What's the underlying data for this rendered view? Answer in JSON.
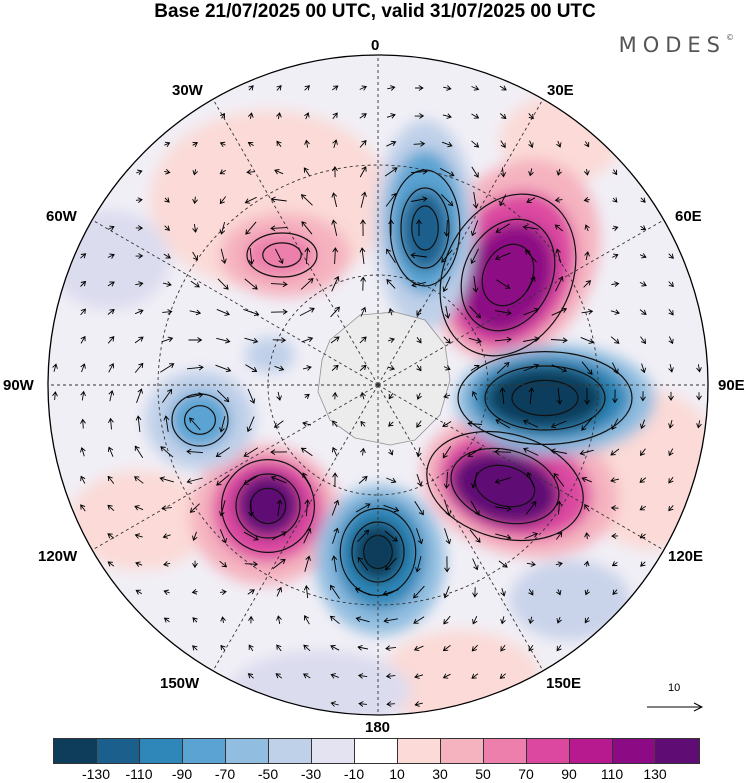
{
  "title": "Base 21/07/2025 00 UTC, valid 31/07/2025 00 UTC",
  "brand": "MODES",
  "brand_mark": "©",
  "lon_labels": {
    "l0": "0",
    "l30E": "30E",
    "l60E": "60E",
    "l90E": "90E",
    "l120E": "120E",
    "l150E": "150E",
    "l180": "180",
    "l150W": "150W",
    "l120W": "120W",
    "l90W": "90W",
    "l60W": "60W",
    "l30W": "30W"
  },
  "reference_vector": {
    "value": "10"
  },
  "colorbar": {
    "colors": [
      "#0e3d5c",
      "#1b5f8c",
      "#2f86b8",
      "#5aa3d2",
      "#90bde0",
      "#bfd0e9",
      "#e3e3f2",
      "#ffffff",
      "#fbdad7",
      "#f5b2bf",
      "#ec7fab",
      "#dc48a0",
      "#b61a8e",
      "#8c0b84",
      "#5f0c74"
    ],
    "ticks": [
      "-130",
      "-110",
      "-90",
      "-70",
      "-50",
      "-30",
      "-10",
      "10",
      "30",
      "50",
      "70",
      "90",
      "110",
      "130"
    ]
  }
}
